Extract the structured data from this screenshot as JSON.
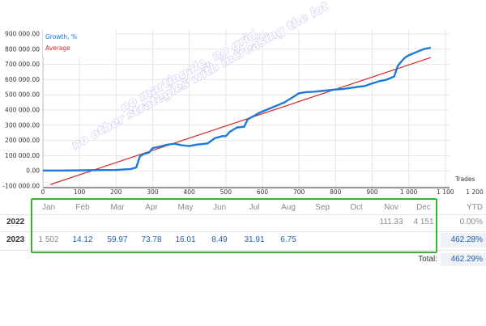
{
  "chart_data": {
    "type": "line",
    "xlabel": "Trades",
    "x_ticks": [
      "0",
      "100",
      "200",
      "300",
      "400",
      "500",
      "600",
      "700",
      "800",
      "900",
      "1 000",
      "1 100",
      "1 200"
    ],
    "y_ticks": [
      "900 000.00",
      "800 000.00",
      "700 000.00",
      "600 000.00",
      "500 000.00",
      "400 000.00",
      "300 000.00",
      "200 000.00",
      "100 000.00",
      "0.00",
      "-100 000.00"
    ],
    "xlim": [
      0,
      1200
    ],
    "ylim": [
      -100000,
      900000
    ],
    "series": [
      {
        "name": "Growth, %",
        "color": "#1e7ad8",
        "x": [
          0,
          50,
          100,
          150,
          200,
          240,
          255,
          265,
          275,
          290,
          300,
          320,
          340,
          360,
          380,
          400,
          420,
          450,
          470,
          490,
          500,
          510,
          530,
          550,
          560,
          580,
          590,
          600,
          620,
          640,
          660,
          680,
          700,
          720,
          740,
          760,
          780,
          800,
          820,
          840,
          860,
          880,
          900,
          920,
          940,
          950,
          960,
          970,
          980,
          990,
          1000,
          1020,
          1040,
          1060
        ],
        "y": [
          2000,
          2000,
          3000,
          5000,
          6000,
          12000,
          22000,
          95000,
          110000,
          120000,
          150000,
          160000,
          172000,
          178000,
          168000,
          163000,
          172000,
          180000,
          215000,
          228000,
          228000,
          255000,
          285000,
          290000,
          340000,
          365000,
          380000,
          390000,
          410000,
          430000,
          450000,
          480000,
          510000,
          518000,
          520000,
          525000,
          530000,
          535000,
          538000,
          545000,
          552000,
          558000,
          575000,
          590000,
          600000,
          610000,
          620000,
          690000,
          720000,
          745000,
          760000,
          780000,
          800000,
          810000
        ]
      },
      {
        "name": "Average",
        "color": "#d92424",
        "x": [
          20,
          1060
        ],
        "y": [
          -90000,
          745000
        ]
      }
    ]
  },
  "watermark": {
    "line1": "no martingale, no grid,",
    "line2": "no other strategies with increasing the lot"
  },
  "table": {
    "months": [
      "Jan",
      "Feb",
      "Mar",
      "Apr",
      "May",
      "Jun",
      "Jul",
      "Aug",
      "Sep",
      "Oct",
      "Nov",
      "Dec"
    ],
    "ytd_label": "YTD",
    "rows": [
      {
        "year": "2022",
        "values": [
          "",
          "",
          "",
          "",
          "",
          "",
          "",
          "",
          "",
          "",
          "111.33",
          "4 151"
        ],
        "ytd": "0.00%"
      },
      {
        "year": "2023",
        "values": [
          "1 502",
          "14.12",
          "59.97",
          "73.78",
          "16.01",
          "8.49",
          "31.91",
          "6.75",
          "",
          "",
          "",
          ""
        ],
        "ytd": "462.28%"
      }
    ],
    "total_label": "Total:",
    "total_value": "462.29%",
    "colors": {
      "highlight": "#3bb33b",
      "value": "#1d5fa8",
      "muted": "#8a8a8a"
    }
  }
}
